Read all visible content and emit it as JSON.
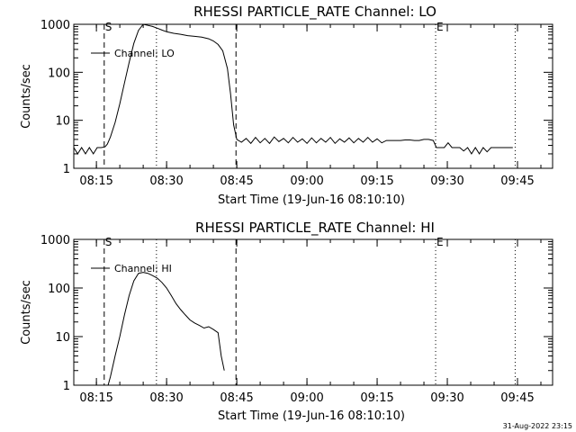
{
  "footer_timestamp": "31-Aug-2022 23:15",
  "chart_data": [
    {
      "type": "line",
      "title": "RHESSI PARTICLE_RATE Channel: LO",
      "xlabel": "Start Time (19-Jun-16 08:10:10)",
      "ylabel": "Counts/sec",
      "y_scale": "log",
      "ylim": [
        1,
        1000
      ],
      "y_ticks": [
        "1",
        "10",
        "100",
        "1000"
      ],
      "xlim": [
        "08:10:10",
        "09:52:30"
      ],
      "x_ticks": [
        "08:15",
        "08:30",
        "08:45",
        "09:00",
        "09:15",
        "09:30",
        "09:45"
      ],
      "legend": "Channel: LO",
      "legend_position": "top-left",
      "markers": [
        {
          "label": "S",
          "time": "08:16:40",
          "style": "dashed"
        },
        {
          "label": "",
          "time": "08:27:50",
          "style": "dotted"
        },
        {
          "label": "",
          "time": "08:44:50",
          "style": "dashed"
        },
        {
          "label": "E",
          "time": "09:27:30",
          "style": "dotted"
        },
        {
          "label": "",
          "time": "09:44:30",
          "style": "dotted"
        }
      ],
      "series": [
        {
          "name": "Channel: LO",
          "x": [
            "08:10:10",
            "08:11:00",
            "08:11:50",
            "08:12:40",
            "08:13:30",
            "08:14:20",
            "08:15:10",
            "08:16:00",
            "08:16:50",
            "08:17:20",
            "08:18:00",
            "08:19:00",
            "08:20:00",
            "08:21:00",
            "08:22:00",
            "08:23:00",
            "08:24:00",
            "08:25:00",
            "08:26:00",
            "08:27:00",
            "08:28:00",
            "08:29:00",
            "08:30:00",
            "08:31:30",
            "08:33:00",
            "08:34:30",
            "08:36:00",
            "08:37:30",
            "08:39:00",
            "08:40:00",
            "08:41:00",
            "08:42:00",
            "08:43:00",
            "08:43:40",
            "08:44:20",
            "08:45:00",
            "08:46:00",
            "08:47:00",
            "08:48:00",
            "08:49:00",
            "08:50:00",
            "08:51:00",
            "08:52:00",
            "08:53:00",
            "08:54:00",
            "08:55:00",
            "08:56:00",
            "08:57:00",
            "08:58:00",
            "08:59:00",
            "09:00:00",
            "09:01:00",
            "09:02:00",
            "09:03:00",
            "09:04:00",
            "09:05:00",
            "09:06:00",
            "09:07:00",
            "09:08:00",
            "09:09:00",
            "09:10:00",
            "09:11:00",
            "09:12:00",
            "09:13:00",
            "09:14:00",
            "09:15:00",
            "09:16:00",
            "09:17:00",
            "09:18:00",
            "09:19:00",
            "09:20:00",
            "09:21:00",
            "09:22:00",
            "09:23:00",
            "09:24:00",
            "09:25:00",
            "09:26:00",
            "09:27:00",
            "09:27:40",
            "09:28:30",
            "09:29:20",
            "09:30:10",
            "09:31:00",
            "09:31:50",
            "09:32:40",
            "09:33:30",
            "09:34:20",
            "09:35:10",
            "09:36:00",
            "09:36:50",
            "09:37:40",
            "09:38:30",
            "09:39:20",
            "09:40:10",
            "09:41:00",
            "09:42:00",
            "09:43:00",
            "09:44:00"
          ],
          "y": [
            2.7,
            2,
            2.7,
            2,
            2.7,
            2,
            2.7,
            2.7,
            2.8,
            3.2,
            4.5,
            9,
            22,
            60,
            160,
            400,
            750,
            1000,
            950,
            900,
            830,
            760,
            700,
            650,
            620,
            580,
            560,
            540,
            500,
            450,
            380,
            280,
            120,
            35,
            8,
            4,
            3.5,
            4.2,
            3.3,
            4.4,
            3.4,
            4.2,
            3.3,
            4.5,
            3.6,
            4.2,
            3.4,
            4.4,
            3.5,
            4.1,
            3.3,
            4.3,
            3.4,
            4.2,
            3.5,
            4.4,
            3.3,
            4.1,
            3.5,
            4.3,
            3.4,
            4.2,
            3.5,
            4.4,
            3.5,
            4.1,
            3.4,
            3.8,
            3.8,
            3.8,
            3.8,
            3.9,
            3.9,
            3.8,
            3.8,
            4,
            4,
            3.8,
            2.7,
            2.7,
            2.7,
            3.4,
            2.7,
            2.7,
            2.7,
            2.3,
            2.7,
            2,
            2.7,
            2,
            2.7,
            2.2,
            2.7,
            2.7,
            2.7,
            2.7,
            2.7,
            2.7
          ]
        }
      ]
    },
    {
      "type": "line",
      "title": "RHESSI PARTICLE_RATE Channel: HI",
      "xlabel": "Start Time (19-Jun-16 08:10:10)",
      "ylabel": "Counts/sec",
      "y_scale": "log",
      "ylim": [
        1,
        1000
      ],
      "y_ticks": [
        "1",
        "10",
        "100",
        "1000"
      ],
      "xlim": [
        "08:10:10",
        "09:52:30"
      ],
      "x_ticks": [
        "08:15",
        "08:30",
        "08:45",
        "09:00",
        "09:15",
        "09:30",
        "09:45"
      ],
      "legend": "Channel: HI",
      "legend_position": "top-left",
      "markers": [
        {
          "label": "S",
          "time": "08:16:40",
          "style": "dashed"
        },
        {
          "label": "",
          "time": "08:27:50",
          "style": "dotted"
        },
        {
          "label": "",
          "time": "08:44:50",
          "style": "dashed"
        },
        {
          "label": "E",
          "time": "09:27:30",
          "style": "dotted"
        },
        {
          "label": "",
          "time": "09:44:30",
          "style": "dotted"
        }
      ],
      "series": [
        {
          "name": "Channel: HI",
          "x": [
            "08:17:30",
            "08:18:00",
            "08:19:00",
            "08:20:00",
            "08:21:00",
            "08:22:00",
            "08:23:00",
            "08:24:00",
            "08:25:00",
            "08:26:00",
            "08:27:00",
            "08:28:00",
            "08:29:00",
            "08:30:00",
            "08:31:00",
            "08:32:00",
            "08:33:00",
            "08:34:00",
            "08:35:00",
            "08:36:00",
            "08:37:00",
            "08:38:00",
            "08:39:00",
            "08:40:00",
            "08:41:00",
            "08:41:40",
            "08:42:20"
          ],
          "y": [
            1,
            1.5,
            4,
            10,
            28,
            70,
            140,
            200,
            210,
            200,
            180,
            160,
            130,
            100,
            70,
            48,
            36,
            28,
            22,
            19,
            17,
            15,
            16,
            14,
            12,
            4,
            2
          ]
        }
      ]
    }
  ]
}
